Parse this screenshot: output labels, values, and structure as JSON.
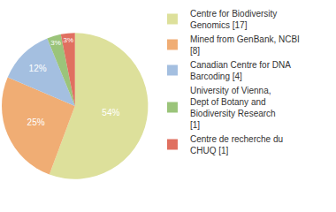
{
  "chart_data": {
    "type": "pie",
    "categories": [
      "Centre for Biodiversity Genomics [17]",
      "Mined from GenBank, NCBI [8]",
      "Canadian Centre for DNA Barcoding [4]",
      "University of Vienna, Dept of Botany and Biodiversity Research [1]",
      "Centre de recherche du CHUQ [1]"
    ],
    "values": [
      54,
      25,
      12,
      3,
      3
    ],
    "value_labels": [
      "54%",
      "25%",
      "12%",
      "3%",
      "3%"
    ],
    "colors": [
      "#dde09b",
      "#f0ad74",
      "#a4bfe0",
      "#9bc47a",
      "#e07060"
    ],
    "data_labels": true,
    "legend": "right"
  }
}
